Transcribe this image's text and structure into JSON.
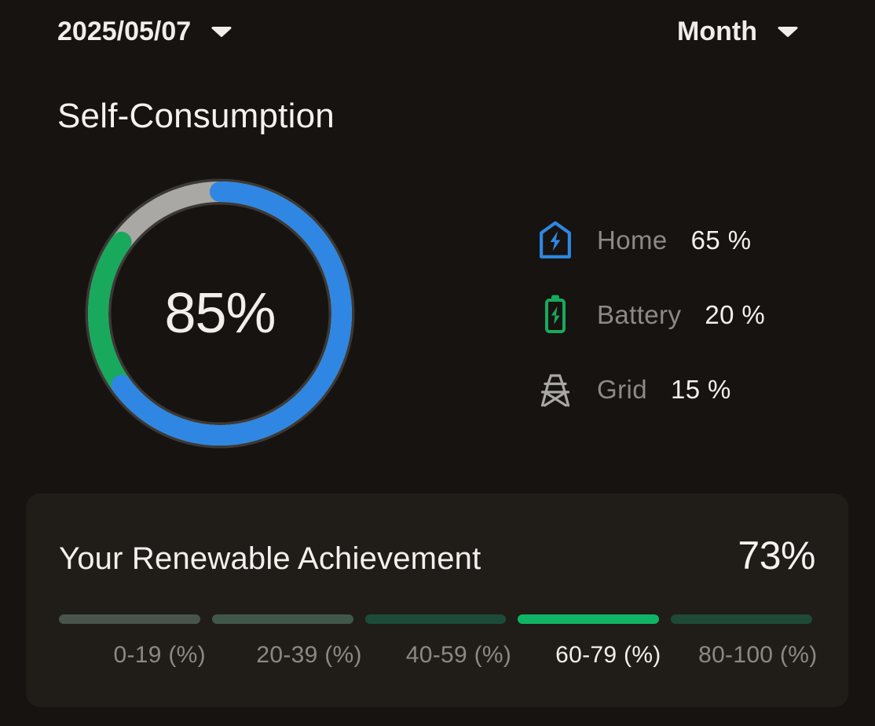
{
  "theme": {
    "background": "#171310",
    "card_background": "#201d18",
    "text_primary": "#f2f0ec",
    "text_secondary": "#8b8a84",
    "ring_outline": "#3b3935",
    "accent_blue": "#2f87e3",
    "accent_green": "#19a95d",
    "accent_bright_green": "#10b465"
  },
  "header": {
    "date": "2025/05/07",
    "date_caret_icon": "chevron-down-icon",
    "period": "Month",
    "period_caret_icon": "chevron-down-icon"
  },
  "self_consumption": {
    "title": "Self-Consumption",
    "center_value": "85%",
    "legend": [
      {
        "icon": "home-bolt-icon",
        "label": "Home",
        "value": "65 %",
        "color": "#2f87e3"
      },
      {
        "icon": "battery-bolt-icon",
        "label": "Battery",
        "value": "20 %",
        "color": "#19a95d"
      },
      {
        "icon": "grid-tower-icon",
        "label": "Grid",
        "value": "15 %",
        "color": "#a9a8a4"
      }
    ]
  },
  "chart_data": {
    "type": "pie",
    "title": "Self-Consumption",
    "center_label": "85%",
    "legend_position": "right",
    "series": [
      {
        "name": "Home",
        "value": 65,
        "color": "#2f87e3"
      },
      {
        "name": "Battery",
        "value": 20,
        "color": "#19a95d"
      },
      {
        "name": "Grid",
        "value": 15,
        "color": "#a9a8a4"
      }
    ]
  },
  "renewable": {
    "title": "Your Renewable Achievement",
    "value": "73%",
    "active_range_index": 3,
    "ranges": [
      {
        "label": "0-19 (%)",
        "color": "#48554c",
        "active": false
      },
      {
        "label": "20-39 (%)",
        "color": "#3f5849",
        "active": false
      },
      {
        "label": "40-59 (%)",
        "color": "#1c4b3a",
        "active": false
      },
      {
        "label": "60-79 (%)",
        "color": "#10b465",
        "active": true
      },
      {
        "label": "80-100 (%)",
        "color": "#1e4a37",
        "active": false
      }
    ]
  }
}
